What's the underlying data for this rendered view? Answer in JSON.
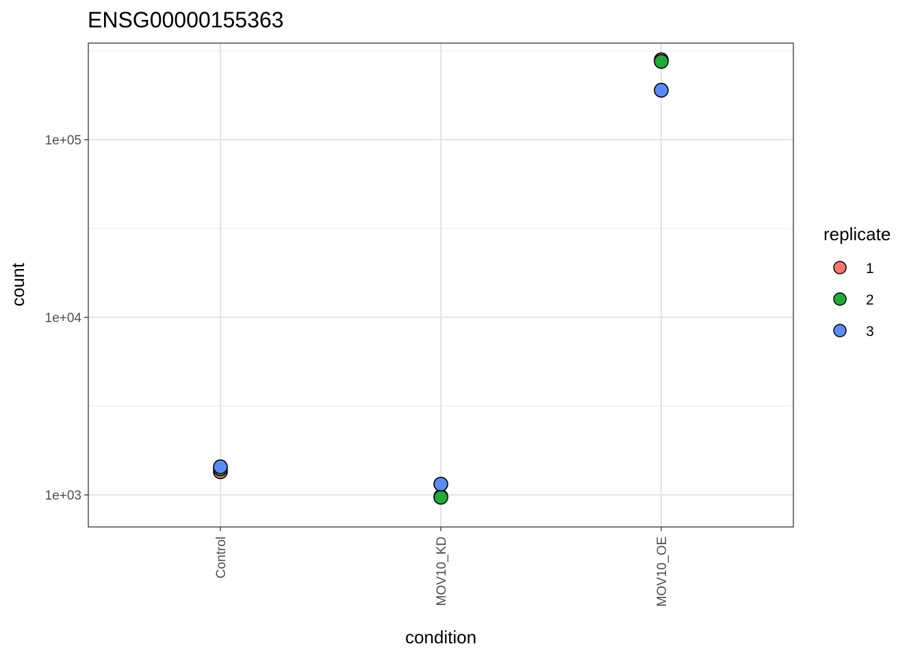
{
  "chart_data": {
    "type": "scatter",
    "title": "ENSG00000155363",
    "xlabel": "condition",
    "ylabel": "count",
    "y_scale": "log10",
    "categories": [
      "Control",
      "MOV10_KD",
      "MOV10_OE"
    ],
    "y_ticks": [
      {
        "value": 1000,
        "label": "1e+03"
      },
      {
        "value": 10000,
        "label": "1e+04"
      },
      {
        "value": 100000,
        "label": "1e+05"
      }
    ],
    "ylim": [
      660,
      350000
    ],
    "grid": true,
    "legend": {
      "title": "replicate",
      "placement": "right",
      "entries": [
        {
          "label": "1",
          "color": "#f8766d"
        },
        {
          "label": "2",
          "color": "#1fab3a"
        },
        {
          "label": "3",
          "color": "#5b8cf5"
        }
      ]
    },
    "series": [
      {
        "name": "1",
        "color": "#f8766d",
        "points": [
          {
            "x": "Control",
            "y": 1350
          },
          {
            "x": "MOV10_KD",
            "y": 980
          },
          {
            "x": "MOV10_OE",
            "y": 282000
          }
        ]
      },
      {
        "name": "2",
        "color": "#1fab3a",
        "points": [
          {
            "x": "Control",
            "y": 1400
          },
          {
            "x": "MOV10_KD",
            "y": 970
          },
          {
            "x": "MOV10_OE",
            "y": 276000
          }
        ]
      },
      {
        "name": "3",
        "color": "#5b8cf5",
        "points": [
          {
            "x": "Control",
            "y": 1440
          },
          {
            "x": "MOV10_KD",
            "y": 1150
          },
          {
            "x": "MOV10_OE",
            "y": 190000
          }
        ]
      }
    ]
  }
}
